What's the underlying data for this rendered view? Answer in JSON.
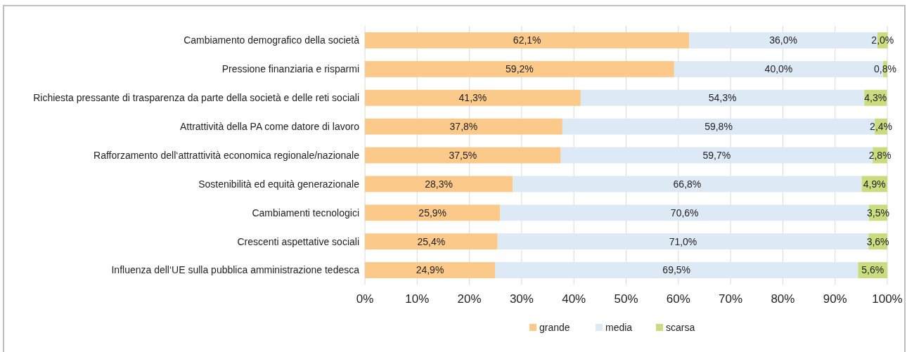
{
  "chart_data": {
    "type": "bar",
    "orientation": "horizontal",
    "stacked": true,
    "categories": [
      "Cambiamento demografico della società",
      "Pressione finanziaria e risparmi",
      "Richiesta pressante di trasparenza da parte della società e delle reti sociali",
      "Attrattività della PA come datore di lavoro",
      "Rafforzamento dell‘attrattività economica regionale/nazionale",
      "Sostenibilità ed equità generazionale",
      "Cambiamenti tecnologici",
      "Crescenti aspettative sociali",
      "Influenza dell‘UE sulla pubblica amministrazione tedesca"
    ],
    "series": [
      {
        "name": "grande",
        "color": "#fbc98a",
        "values": [
          62.1,
          59.2,
          41.3,
          37.8,
          37.5,
          28.3,
          25.9,
          25.4,
          24.9
        ],
        "value_labels": [
          "62,1%",
          "59,2%",
          "41,3%",
          "37,8%",
          "37,5%",
          "28,3%",
          "25,9%",
          "25,4%",
          "24,9%"
        ]
      },
      {
        "name": "media",
        "color": "#dde9f5",
        "values": [
          36.0,
          40.0,
          54.3,
          59.8,
          59.7,
          66.8,
          70.6,
          71.0,
          69.5
        ],
        "value_labels": [
          "36,0%",
          "40,0%",
          "54,3%",
          "59,8%",
          "59,7%",
          "66,8%",
          "70,6%",
          "71,0%",
          "69,5%"
        ]
      },
      {
        "name": "scarsa",
        "color": "#c9dc7e",
        "values": [
          2.0,
          0.8,
          4.3,
          2.4,
          2.8,
          4.9,
          3.5,
          3.6,
          5.6
        ],
        "value_labels": [
          "2,0%",
          "0,8%",
          "4,3%",
          "2,4%",
          "2,8%",
          "4,9%",
          "3,5%",
          "3,6%",
          "5,6%"
        ]
      }
    ],
    "xlim": [
      0,
      100
    ],
    "xticks": [
      {
        "value": 0,
        "label": "0%"
      },
      {
        "value": 10,
        "label": "10%"
      },
      {
        "value": 20,
        "label": "20%"
      },
      {
        "value": 30,
        "label": "30%"
      },
      {
        "value": 40,
        "label": "40%"
      },
      {
        "value": 50,
        "label": "50%"
      },
      {
        "value": 60,
        "label": "60%"
      },
      {
        "value": 70,
        "label": "70%"
      },
      {
        "value": 80,
        "label": "80%"
      },
      {
        "value": 90,
        "label": "90%"
      },
      {
        "value": 100,
        "label": "100%"
      }
    ],
    "grid": "x",
    "legend": "bottom"
  }
}
